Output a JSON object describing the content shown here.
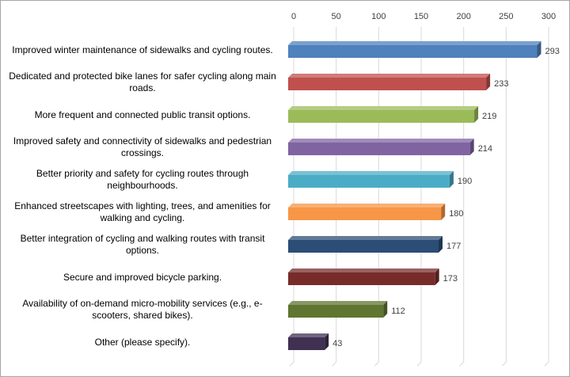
{
  "chart_data": {
    "type": "bar",
    "orientation": "horizontal",
    "title": "",
    "xlabel": "",
    "ylabel": "",
    "xlim": [
      0,
      300
    ],
    "x_ticks": [
      0,
      50,
      100,
      150,
      200,
      250,
      300
    ],
    "x_tick_labels": [
      "0",
      "50",
      "100",
      "150",
      "200",
      "250",
      "300"
    ],
    "grid": "vertical",
    "style": "3d",
    "categories": [
      "Improved winter maintenance of sidewalks and cycling routes.",
      "Dedicated and protected bike lanes for safer cycling along main roads.",
      "More frequent and connected public transit options.",
      "Improved safety and connectivity of sidewalks and pedestrian crossings.",
      "Better priority and safety for cycling routes through neighbourhoods.",
      "Enhanced streetscapes with lighting, trees, and amenities for walking and cycling.",
      "Better integration of cycling and walking routes with transit options.",
      "Secure and improved bicycle parking.",
      "Availability of on-demand micro-mobility services (e.g., e-scooters, shared bikes).",
      "Other (please specify)."
    ],
    "values": [
      293,
      233,
      219,
      214,
      190,
      180,
      177,
      173,
      112,
      43
    ],
    "value_labels": [
      "293",
      "233",
      "219",
      "214",
      "190",
      "180",
      "177",
      "173",
      "112",
      "43"
    ],
    "colors": [
      "#4f81bd",
      "#c0504d",
      "#9bbb59",
      "#8064a2",
      "#4bacc6",
      "#f79646",
      "#2c4d75",
      "#772c2a",
      "#5f7530",
      "#403152"
    ]
  }
}
